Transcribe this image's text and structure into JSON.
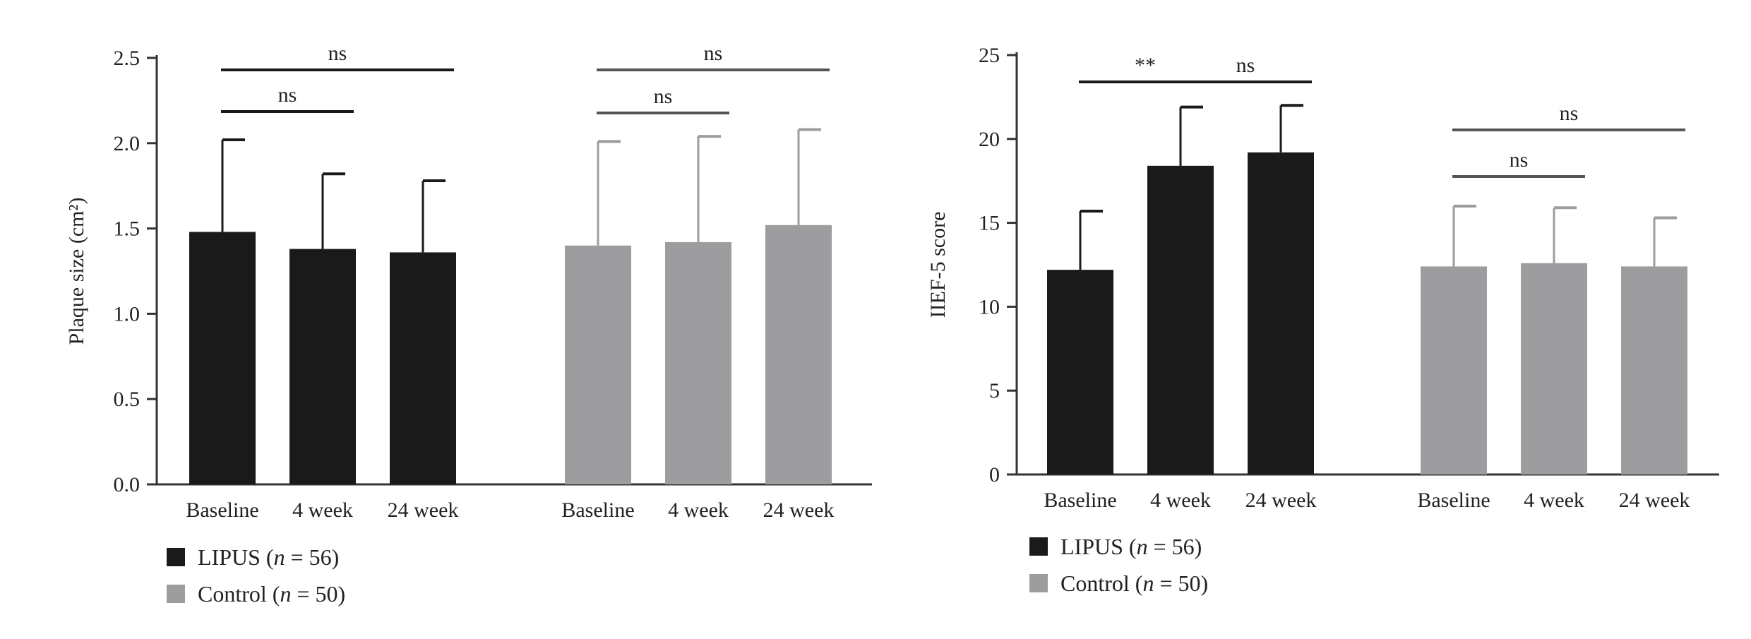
{
  "colors": {
    "lipus": "#1a1a1a",
    "control": "#9d9d9f",
    "axis": "#333333"
  },
  "legend_text": {
    "lipus_name": "LIPUS",
    "control_name": "Control",
    "n_symbol": "n",
    "lipus_n": "56",
    "control_n": "50"
  },
  "chart_data": [
    {
      "type": "bar",
      "ylabel": "Plaque size (cm²)",
      "ylim": [
        0,
        2.5
      ],
      "yticks": [
        "0.0",
        "0.5",
        "1.0",
        "1.5",
        "2.0",
        "2.5"
      ],
      "categories": [
        "Baseline",
        "4 week",
        "24 week"
      ],
      "series": [
        {
          "name": "LIPUS (n = 56)",
          "values": [
            1.48,
            1.38,
            1.36
          ],
          "errors": [
            0.54,
            0.44,
            0.42
          ]
        },
        {
          "name": "Control (n = 50)",
          "values": [
            1.4,
            1.42,
            1.52
          ],
          "errors": [
            0.61,
            0.62,
            0.56
          ]
        }
      ],
      "annotations": [
        {
          "series": 0,
          "from": 0,
          "to": 1,
          "label": "ns"
        },
        {
          "series": 0,
          "from": 0,
          "to": 2,
          "label": "ns"
        },
        {
          "series": 1,
          "from": 0,
          "to": 1,
          "label": "ns"
        },
        {
          "series": 1,
          "from": 0,
          "to": 2,
          "label": "ns"
        }
      ],
      "legend": "bottom-left"
    },
    {
      "type": "bar",
      "ylabel": "IIEF-5 score",
      "ylim": [
        0,
        25
      ],
      "yticks": [
        "0",
        "5",
        "10",
        "15",
        "20",
        "25"
      ],
      "categories": [
        "Baseline",
        "4 week",
        "24 week"
      ],
      "series": [
        {
          "name": "LIPUS (n = 56)",
          "values": [
            12.2,
            18.4,
            19.2
          ],
          "errors": [
            3.5,
            3.5,
            2.8
          ]
        },
        {
          "name": "Control (n = 50)",
          "values": [
            12.4,
            12.6,
            12.4
          ],
          "errors": [
            3.6,
            3.3,
            2.9
          ]
        }
      ],
      "annotations": [
        {
          "series": 0,
          "from": 0,
          "to": 1,
          "label": "**"
        },
        {
          "series": 0,
          "from": 1,
          "to": 2,
          "label": "ns"
        },
        {
          "series": 1,
          "from": 0,
          "to": 1,
          "label": "ns"
        },
        {
          "series": 1,
          "from": 0,
          "to": 2,
          "label": "ns"
        }
      ],
      "legend": "bottom-left"
    }
  ]
}
